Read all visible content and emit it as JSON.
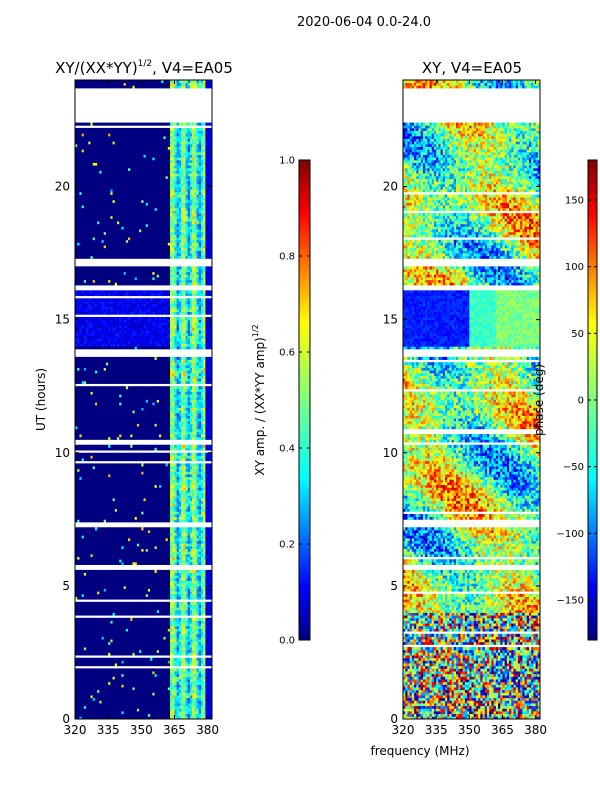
{
  "figure": {
    "suptitle": "2020-06-04 0.0-24.0"
  },
  "chart_data": [
    {
      "type": "heatmap",
      "title_main": "XY/(XX*YY)",
      "title_sup": "1/2",
      "title_rest": ", V4=EA05",
      "xlabel": "",
      "ylabel": "UT (hours)",
      "xlim": [
        320,
        382
      ],
      "ylim": [
        0,
        24
      ],
      "xticks": [
        320,
        335,
        350,
        365,
        380
      ],
      "yticks": [
        0,
        5,
        10,
        15,
        20
      ],
      "grid": false,
      "gaps_hours": [
        [
          22.4,
          23.7
        ],
        [
          17.0,
          17.3
        ],
        [
          16.1,
          16.3
        ],
        [
          13.6,
          13.9
        ],
        [
          7.2,
          7.4
        ],
        [
          5.6,
          5.8
        ]
      ],
      "bright_band_mhz": [
        363,
        379
      ],
      "colorbar": {
        "label_main": "XY amp. / (XX*YY amp)",
        "label_sup": "1/2",
        "range": [
          0.0,
          1.0
        ],
        "ticks": [
          "0.0",
          "0.2",
          "0.4",
          "0.6",
          "0.8",
          "1.0"
        ],
        "tick_values": [
          0.0,
          0.2,
          0.4,
          0.6,
          0.8,
          1.0
        ]
      }
    },
    {
      "type": "heatmap",
      "title": "XY, V4=EA05",
      "xlabel": "frequency (MHz)",
      "ylabel": "",
      "xlim": [
        320,
        382
      ],
      "ylim": [
        0,
        24
      ],
      "xticks": [
        320,
        335,
        350,
        365,
        380
      ],
      "yticks": [
        0,
        5,
        10,
        15,
        20
      ],
      "grid": false,
      "gaps_hours": [
        [
          22.4,
          23.7
        ],
        [
          17.0,
          17.3
        ],
        [
          16.1,
          16.3
        ],
        [
          13.6,
          13.9
        ],
        [
          7.2,
          7.4
        ],
        [
          5.6,
          5.8
        ]
      ],
      "colorbar": {
        "label": "phase (deg)",
        "range": [
          -180,
          180
        ],
        "ticks": [
          "−150",
          "−100",
          "−50",
          "0",
          "50",
          "100",
          "150"
        ],
        "tick_values": [
          -150,
          -100,
          -50,
          0,
          50,
          100,
          150
        ]
      }
    }
  ],
  "colors": {
    "jet_stops": [
      "#00007f",
      "#0000ff",
      "#007fff",
      "#00ffff",
      "#7fff7f",
      "#ffff00",
      "#ff7f00",
      "#ff0000",
      "#7f0000"
    ]
  }
}
